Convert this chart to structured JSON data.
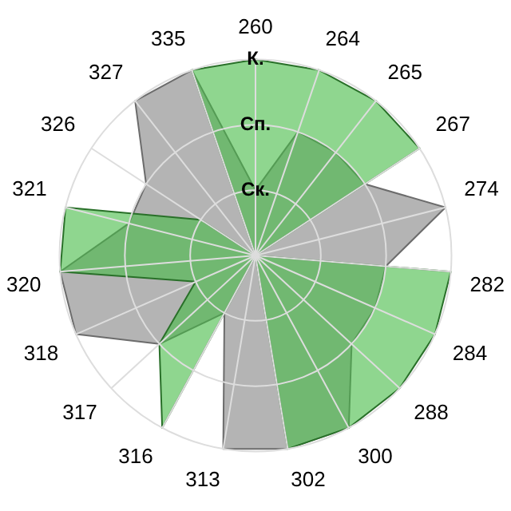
{
  "chart_data": {
    "type": "radar",
    "categories": [
      "260",
      "264",
      "265",
      "267",
      "274",
      "282",
      "284",
      "288",
      "300",
      "302",
      "313",
      "316",
      "317",
      "318",
      "320",
      "321",
      "326",
      "327",
      "335"
    ],
    "series": [
      {
        "color": "#b4b4b4",
        "values": [
          1,
          2,
          2,
          2,
          3,
          2,
          2,
          2,
          3,
          3,
          3,
          1,
          2,
          3,
          3,
          2,
          2,
          3,
          3
        ]
      },
      {
        "color": "#44bb44",
        "values": [
          3,
          3,
          3,
          3,
          0,
          3,
          3,
          3,
          3,
          3,
          0,
          3,
          2,
          1,
          3,
          3,
          1,
          0,
          3
        ]
      }
    ],
    "ylim": [
      0,
      3
    ],
    "yticks": [
      {
        "value": 1,
        "label": "Ск."
      },
      {
        "value": 2,
        "label": "Сп."
      },
      {
        "value": 3,
        "label": "К."
      }
    ],
    "grid": true,
    "legend": false,
    "marker": "none",
    "line_style": "solid"
  }
}
